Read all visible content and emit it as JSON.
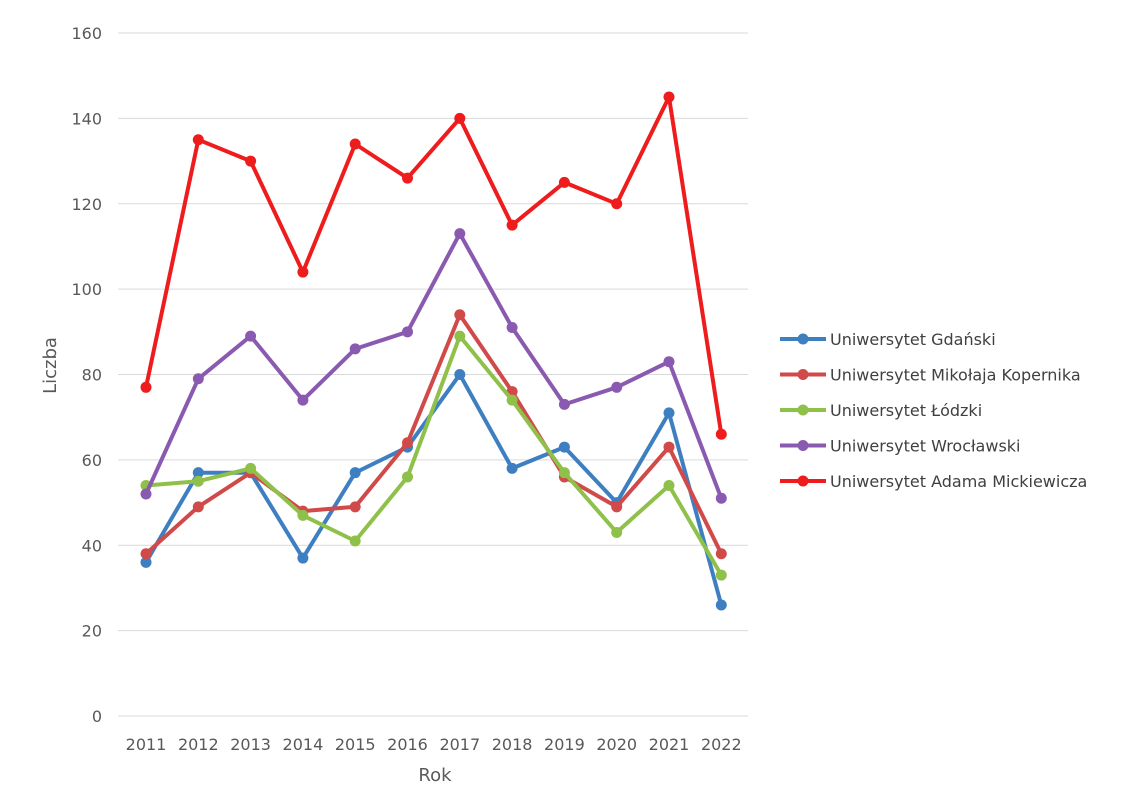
{
  "chart_data": {
    "type": "line",
    "title": "",
    "xlabel": "Rok",
    "ylabel": "Liczba",
    "ylim": [
      0,
      160
    ],
    "yticks": [
      0,
      20,
      40,
      60,
      80,
      100,
      120,
      140,
      160
    ],
    "grid": true,
    "legend_position": "right",
    "categories": [
      "2011",
      "2012",
      "2013",
      "2014",
      "2015",
      "2016",
      "2017",
      "2018",
      "2019",
      "2020",
      "2021",
      "2022"
    ],
    "series": [
      {
        "name": "Uniwersytet Gdański",
        "color": "#3e7fc1",
        "values": [
          36,
          57,
          57,
          37,
          57,
          63,
          80,
          58,
          63,
          50,
          71,
          26
        ]
      },
      {
        "name": "Uniwersytet Mikołaja Kopernika",
        "color": "#d04a4a",
        "values": [
          38,
          49,
          57,
          48,
          49,
          64,
          94,
          76,
          56,
          49,
          63,
          38
        ]
      },
      {
        "name": "Uniwersytet Łódzki",
        "color": "#8fc14a",
        "values": [
          54,
          55,
          58,
          47,
          41,
          56,
          89,
          74,
          57,
          43,
          54,
          33
        ]
      },
      {
        "name": "Uniwersytet Wrocławski",
        "color": "#8a5ab0",
        "values": [
          52,
          79,
          89,
          74,
          86,
          90,
          113,
          91,
          73,
          77,
          83,
          51
        ]
      },
      {
        "name": "Uniwersytet Adama Mickiewicza",
        "color": "#ee1c1c",
        "values": [
          77,
          135,
          130,
          104,
          134,
          126,
          140,
          115,
          125,
          120,
          145,
          66
        ]
      }
    ]
  }
}
